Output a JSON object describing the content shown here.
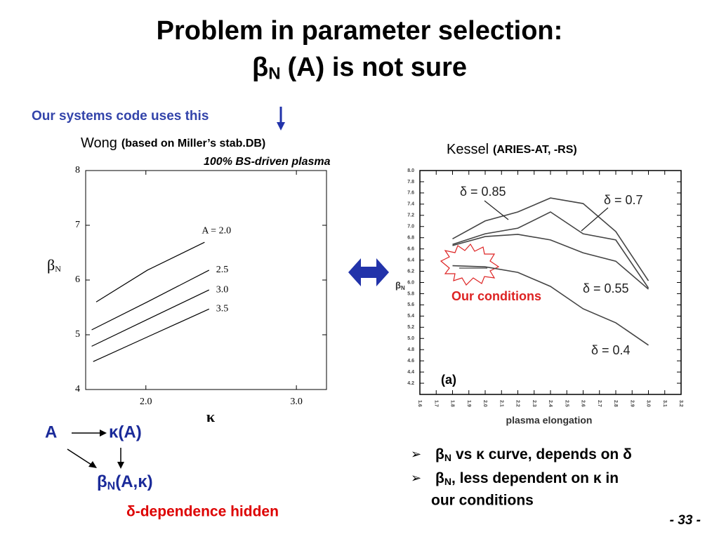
{
  "title": {
    "line1": "Problem in parameter selection:",
    "line2": {
      "symbol": "β",
      "subscript": "N",
      "rest": "(A) is not sure"
    }
  },
  "note": "Our systems code uses this",
  "chart_data": [
    {
      "type": "line",
      "title": "Wong",
      "subtitle": "(based on Miller’s stab.DB)",
      "annotation": "100% BS-driven plasma",
      "x_label": "κ",
      "y_label": {
        "symbol": "β",
        "subscript": "N"
      },
      "xlim": [
        1.6,
        3.2
      ],
      "xticks": [
        {
          "value": 2,
          "label": "2.0"
        },
        {
          "value": 3,
          "label": "3.0"
        }
      ],
      "ylim": [
        4,
        8
      ],
      "yticks": [
        4,
        5,
        6,
        7,
        8
      ],
      "series": [
        {
          "name": "A = 2.0",
          "color": "#000000",
          "x": [
            1.67,
            2.01,
            2.39
          ],
          "values": [
            5.6,
            6.18,
            6.69
          ]
        },
        {
          "name": "2.5",
          "color": "#000000",
          "x": [
            1.64,
            2.01,
            2.42
          ],
          "values": [
            5.09,
            5.6,
            6.18
          ]
        },
        {
          "name": "3.0",
          "color": "#000000",
          "x": [
            1.64,
            2.01,
            2.42
          ],
          "values": [
            4.79,
            5.28,
            5.82
          ]
        },
        {
          "name": "3.5",
          "color": "#000000",
          "x": [
            1.65,
            2.01,
            2.42
          ],
          "values": [
            4.51,
            4.96,
            5.47
          ]
        }
      ]
    },
    {
      "type": "line",
      "title": "Kessel",
      "subtitle": "(ARIES-AT, -RS)",
      "annotation": "(a)",
      "x_label": "plasma elongation",
      "y_label": {
        "symbol": "β",
        "subscript": "N"
      },
      "xlim": [
        1.6,
        3.2
      ],
      "xticks": [
        1.6,
        1.7,
        1.8,
        1.9,
        {
          "value": 2,
          "label": "2.0"
        },
        2.1,
        2.2,
        2.3,
        2.4,
        2.5,
        2.6,
        2.7,
        2.8,
        2.9,
        {
          "value": 3,
          "label": "3.0"
        },
        3.1,
        3.2
      ],
      "ylim": [
        4,
        8
      ],
      "yticks": [
        4.2,
        4.4,
        4.6,
        4.8,
        {
          "value": 5,
          "label": "5.0"
        },
        5.2,
        5.4,
        5.6,
        5.8,
        {
          "value": 6,
          "label": "6.0"
        },
        6.2,
        6.4,
        6.6,
        6.8,
        {
          "value": 7,
          "label": "7.0"
        },
        7.2,
        7.4,
        7.6,
        7.8,
        {
          "value": 8,
          "label": "8.0"
        }
      ],
      "x": [
        1.8,
        2.0,
        2.2,
        2.4,
        2.6,
        2.8,
        3.0
      ],
      "series": [
        {
          "name": "δ = 0.85",
          "color": "#444444",
          "values": [
            6.78,
            7.1,
            7.26,
            7.51,
            7.41,
            6.91,
            6.03
          ]
        },
        {
          "name": "δ = 0.7",
          "color": "#444444",
          "values": [
            6.68,
            6.87,
            6.97,
            7.26,
            6.87,
            6.76,
            5.9
          ]
        },
        {
          "name": "δ = 0.55",
          "color": "#444444",
          "values": [
            6.66,
            6.82,
            6.86,
            6.76,
            6.53,
            6.38,
            5.88
          ]
        },
        {
          "name": "δ = 0.4",
          "color": "#444444",
          "values": [
            6.3,
            6.28,
            6.18,
            5.93,
            5.53,
            5.28,
            4.88
          ]
        }
      ]
    }
  ],
  "marker_label": "Our conditions",
  "diagram": {
    "a": "A",
    "kappa": "κ(A)",
    "beta": {
      "symbol": "β",
      "subscript": "N",
      "rest": "(A,κ)"
    },
    "hidden": "δ-dependence hidden"
  },
  "bullets": [
    {
      "symbol": "β",
      "subscript": "N",
      "rest": "vs κ curve, depends on δ"
    },
    {
      "symbol": "β",
      "subscript": "N",
      "rest": ", less dependent on κ in",
      "line2": "our conditions"
    }
  ],
  "page_number": "- 33 -"
}
